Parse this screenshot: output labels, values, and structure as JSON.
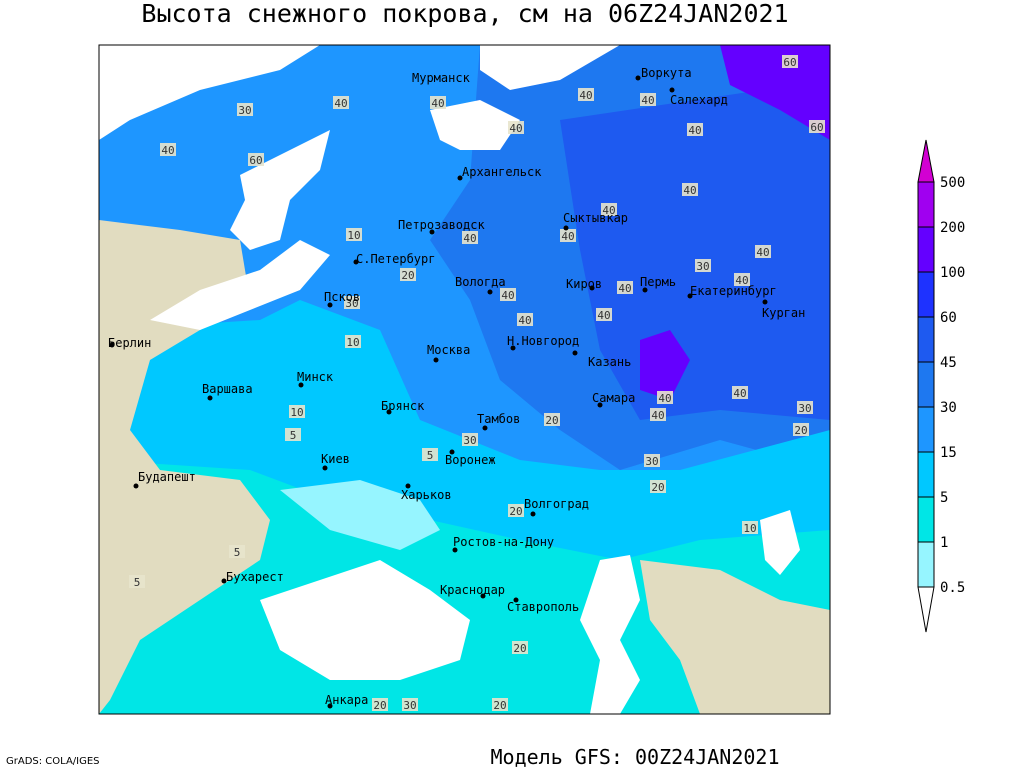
{
  "title": "Высота снежного покрова, см на 06Z24JAN2021",
  "footer": "Модель GFS: 00Z24JAN2021",
  "credit": "GrADS: COLA/IGES",
  "cities": [
    "Мурманск",
    "Воркута",
    "Салехард",
    "Архангельск",
    "Сыктывкар",
    "Петрозаводск",
    "С.Петербург",
    "Вологда",
    "Киров",
    "Пермь",
    "Екатеринбург",
    "Курган",
    "Псков",
    "Берлин",
    "Москва",
    "Н.Новгород",
    "Казань",
    "Минск",
    "Варшава",
    "Самара",
    "Брянск",
    "Тамбов",
    "Киев",
    "Воронеж",
    "Будапешт",
    "Харьков",
    "Волгоград",
    "Ростов-на-Дону",
    "Бухарест",
    "Краснодар",
    "Ставрополь",
    "Анкара"
  ],
  "contour_labels": [
    60,
    40,
    40,
    40,
    30,
    40,
    60,
    40,
    40,
    40,
    60,
    40,
    40,
    40,
    40,
    40,
    40,
    40,
    30,
    40,
    10,
    20,
    40,
    40,
    40,
    30,
    20,
    10,
    20,
    10,
    40,
    40,
    30,
    20,
    30,
    20,
    10,
    5,
    5,
    5,
    5,
    20,
    30,
    20,
    20,
    30
  ],
  "legend": {
    "levels": [
      0.5,
      1,
      5,
      15,
      30,
      45,
      60,
      100,
      200,
      500
    ],
    "colors": [
      "#ffffff",
      "#96f5ff",
      "#00e6e6",
      "#00c8ff",
      "#1e96ff",
      "#1e78f0",
      "#1e5af0",
      "#1e32ff",
      "#6400ff",
      "#a000f0",
      "#d200d2"
    ]
  }
}
